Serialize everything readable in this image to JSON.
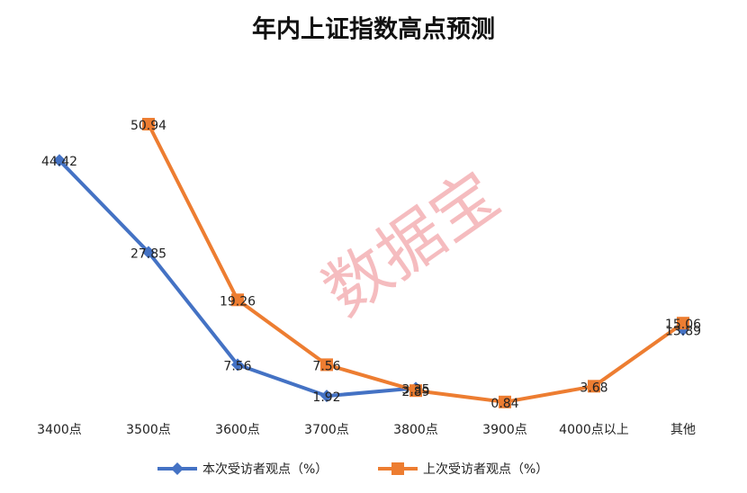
{
  "chart_data": {
    "type": "line",
    "title": "年内上证指数高点预测",
    "watermark": "数据宝",
    "categories": [
      "3400点",
      "3500点",
      "3600点",
      "3700点",
      "3800点",
      "3900点",
      "4000点以上",
      "其他"
    ],
    "series": [
      {
        "name": "本次受访者观点（%）",
        "color": "#4472c4",
        "marker": "diamond",
        "values": [
          44.42,
          27.85,
          7.56,
          1.92,
          3.35,
          null,
          null,
          13.89
        ]
      },
      {
        "name": "上次受访者观点（%）",
        "color": "#ed7d31",
        "marker": "square",
        "values": [
          null,
          50.94,
          19.26,
          7.56,
          2.89,
          0.84,
          3.68,
          15.06
        ]
      }
    ],
    "ylim": [
      0,
      55
    ],
    "legend": "bottom"
  }
}
